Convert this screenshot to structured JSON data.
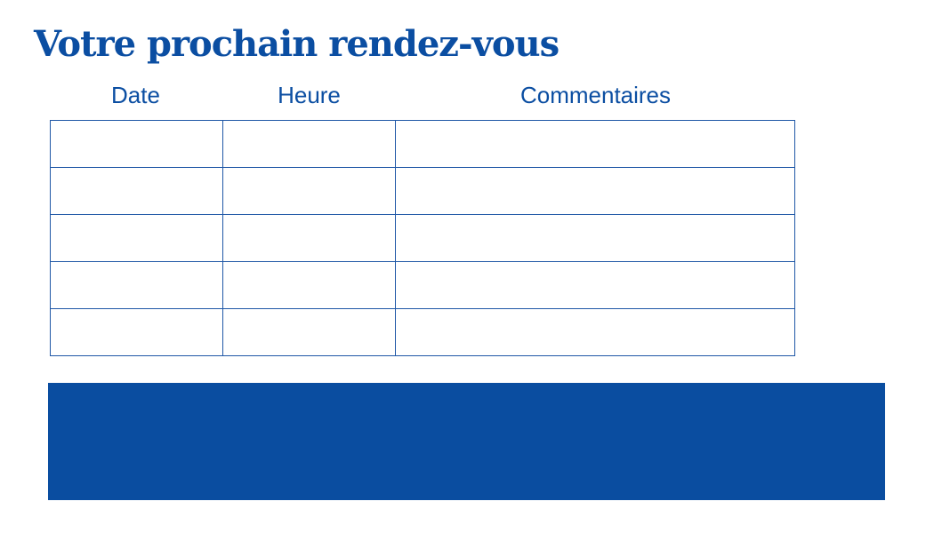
{
  "title": "Votre prochain rendez-vous",
  "table": {
    "headers": [
      "Date",
      "Heure",
      "Commentaires"
    ],
    "rows": [
      [
        "",
        "",
        ""
      ],
      [
        "",
        "",
        ""
      ],
      [
        "",
        "",
        ""
      ],
      [
        "",
        "",
        ""
      ],
      [
        "",
        "",
        ""
      ]
    ]
  },
  "colors": {
    "accent": "#0a4da0"
  }
}
